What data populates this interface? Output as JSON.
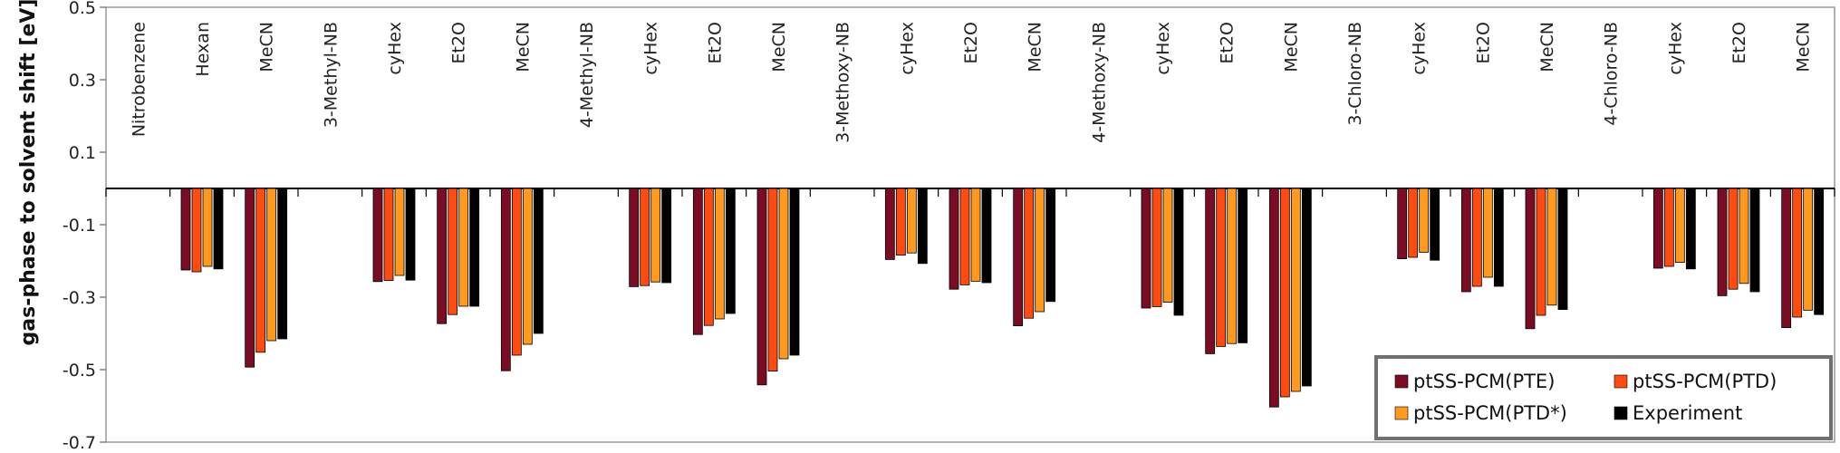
{
  "chart_data": {
    "type": "bar",
    "ylabel": "gas-phase to solvent shift [eV]",
    "ylim": [
      -0.7,
      0.5
    ],
    "yticks": [
      0.5,
      0.3,
      0.1,
      -0.1,
      -0.3,
      -0.5,
      -0.7
    ],
    "yticklabels": [
      "0.5",
      "0.3",
      "0.1",
      "-0.1",
      "-0.3",
      "-0.5",
      "-0.7"
    ],
    "grid": false,
    "legend_position": "bottom-right",
    "colors": [
      "#7a0d24",
      "#ff4b10",
      "#ff9a1e",
      "#000000"
    ],
    "categories": [
      "Nitrobenzene",
      "Hexan",
      "MeCN",
      "3-Methyl-NB",
      "cyHex",
      "Et2O",
      "MeCN",
      "4-Methyl-NB",
      "cyHex",
      "Et2O",
      "MeCN",
      "3-Methoxy-NB",
      "cyHex",
      "Et2O",
      "MeCN",
      "4-Methoxy-NB",
      "cyHex",
      "Et2O",
      "MeCN",
      "3-Chloro-NB",
      "cyHex",
      "Et2O",
      "MeCN",
      "4-Chloro-NB",
      "cyHex",
      "Et2O",
      "MeCN"
    ],
    "series": [
      {
        "name": "ptSS-PCM(PTE)",
        "values": [
          null,
          -0.225,
          -0.493,
          null,
          -0.257,
          -0.373,
          -0.503,
          null,
          -0.271,
          -0.403,
          -0.542,
          null,
          -0.196,
          -0.278,
          -0.379,
          null,
          -0.33,
          -0.456,
          -0.603,
          null,
          -0.194,
          -0.285,
          -0.387,
          null,
          -0.22,
          -0.296,
          -0.384
        ]
      },
      {
        "name": "ptSS-PCM(PTD)",
        "values": [
          null,
          -0.23,
          -0.452,
          null,
          -0.254,
          -0.348,
          -0.46,
          null,
          -0.268,
          -0.378,
          -0.504,
          null,
          -0.184,
          -0.266,
          -0.358,
          null,
          -0.326,
          -0.436,
          -0.575,
          null,
          -0.19,
          -0.27,
          -0.35,
          null,
          -0.215,
          -0.278,
          -0.355
        ]
      },
      {
        "name": "ptSS-PCM(PTD*)",
        "values": [
          null,
          -0.215,
          -0.42,
          null,
          -0.24,
          -0.325,
          -0.43,
          null,
          -0.258,
          -0.36,
          -0.47,
          null,
          -0.178,
          -0.256,
          -0.34,
          null,
          -0.314,
          -0.428,
          -0.56,
          null,
          -0.176,
          -0.245,
          -0.322,
          null,
          -0.204,
          -0.262,
          -0.336
        ]
      },
      {
        "name": "Experiment",
        "values": [
          null,
          -0.222,
          -0.415,
          null,
          -0.253,
          -0.325,
          -0.4,
          null,
          -0.26,
          -0.345,
          -0.46,
          null,
          -0.207,
          -0.26,
          -0.312,
          null,
          -0.35,
          -0.426,
          -0.545,
          null,
          -0.198,
          -0.27,
          -0.334,
          null,
          -0.222,
          -0.285,
          -0.348
        ]
      }
    ]
  }
}
